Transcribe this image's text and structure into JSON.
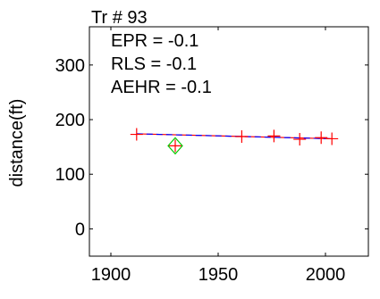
{
  "chart_data": {
    "type": "scatter",
    "title": "Tr # 93",
    "xlabel": "",
    "ylabel": "distance(ft)",
    "xlim": [
      1890,
      2020
    ],
    "ylim": [
      -50,
      370
    ],
    "xticks": [
      1900,
      1950,
      2000
    ],
    "yticks": [
      0,
      100,
      200,
      300
    ],
    "xtick_labels": [
      "1900",
      "1950",
      "2000"
    ],
    "ytick_labels": [
      "0",
      "100",
      "200",
      "300"
    ],
    "grid": false,
    "annotations": [
      "EPR = -0.1",
      "RLS = -0.1",
      "AEHR = -0.1"
    ],
    "series": [
      {
        "marker": "plus",
        "color": "#ff0000",
        "points": [
          {
            "x": 1912,
            "y": 173
          },
          {
            "x": 1930,
            "y": 152
          },
          {
            "x": 1961,
            "y": 169
          },
          {
            "x": 1976,
            "y": 170
          },
          {
            "x": 1988,
            "y": 164
          },
          {
            "x": 1998,
            "y": 167
          },
          {
            "x": 2003,
            "y": 165
          }
        ]
      },
      {
        "marker": "diamond",
        "color": "#00cc00",
        "points": [
          {
            "x": 1930,
            "y": 152
          }
        ]
      }
    ],
    "fit_lines": [
      {
        "style": "solid",
        "color": "#ff0000",
        "x": [
          1912,
          2003
        ],
        "y": [
          174,
          165
        ]
      },
      {
        "style": "dashed",
        "color": "#0000ff",
        "x": [
          1912,
          2003
        ],
        "y": [
          174,
          165
        ]
      }
    ]
  }
}
